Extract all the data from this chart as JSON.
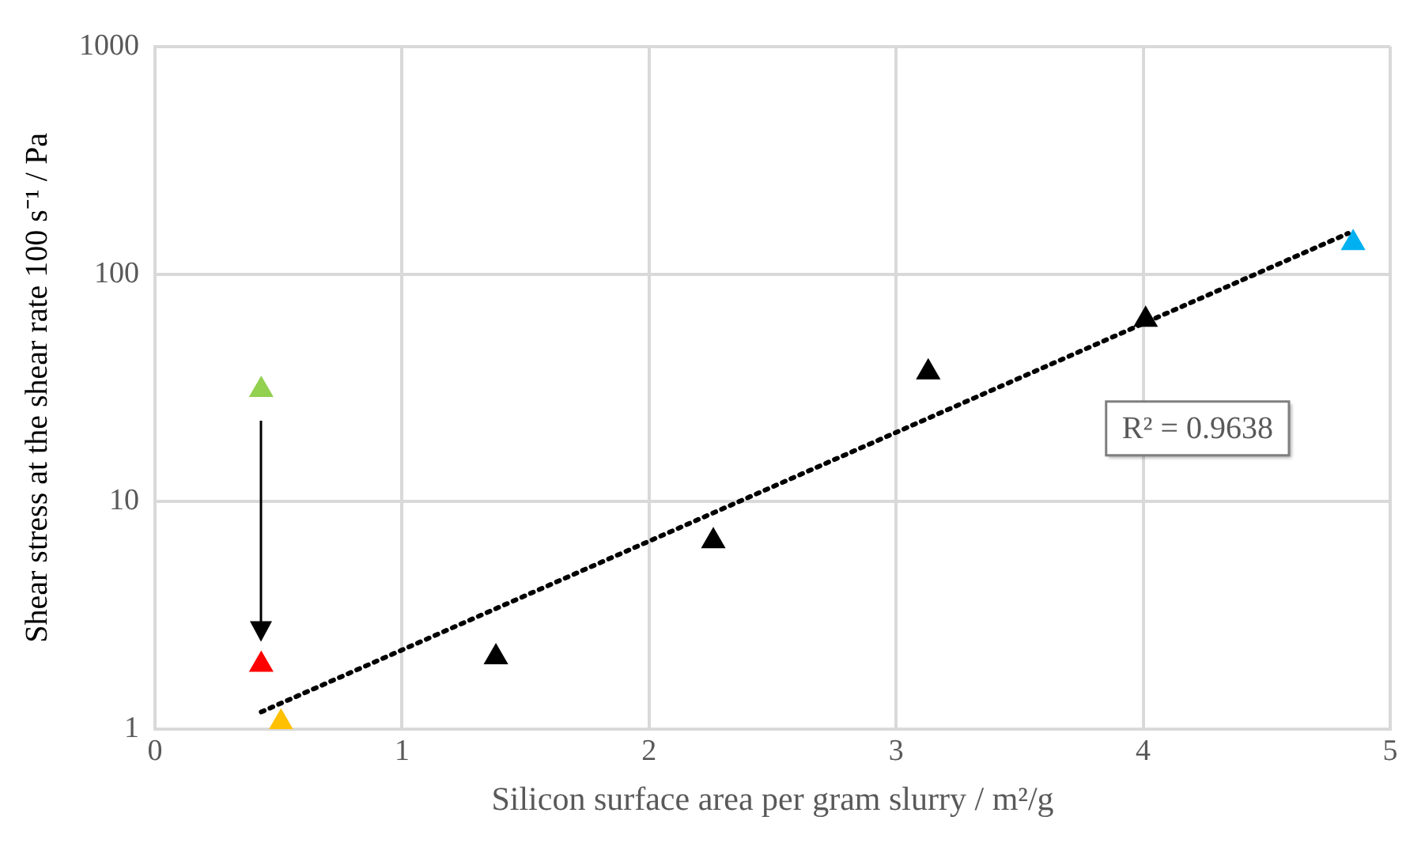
{
  "chart_data": {
    "type": "scatter",
    "xlabel": "Silicon surface area per gram slurry / m²/g",
    "ylabel": "Shear stress at the shear rate 100 s⁻¹ / Pa",
    "xlim": [
      0,
      5
    ],
    "xticks": [
      0,
      1,
      2,
      3,
      4,
      5
    ],
    "ylim": [
      1,
      1000
    ],
    "yticks": [
      1,
      10,
      100,
      1000
    ],
    "log": "y",
    "grid": true,
    "legend": false,
    "marker": "triangle",
    "series": [
      {
        "type": "scatter",
        "x": [
          0.43,
          0.43,
          0.51,
          1.38,
          2.26,
          3.13,
          4.01,
          4.85
        ],
        "values": [
          31,
          1.92,
          1.07,
          2.07,
          6.7,
          37,
          63,
          137
        ],
        "colors": [
          "#92d050",
          "#ff0000",
          "#ffc000",
          "#000000",
          "#000000",
          "#000000",
          "#000000",
          "#00b0f0"
        ]
      },
      {
        "type": "line",
        "x": [
          0.43,
          4.83
        ],
        "values": [
          1.19,
          151
        ],
        "color": "#000000",
        "marker": "none",
        "line_style": "dotted"
      }
    ],
    "annotations": [
      "R² = 0.9638"
    ]
  }
}
